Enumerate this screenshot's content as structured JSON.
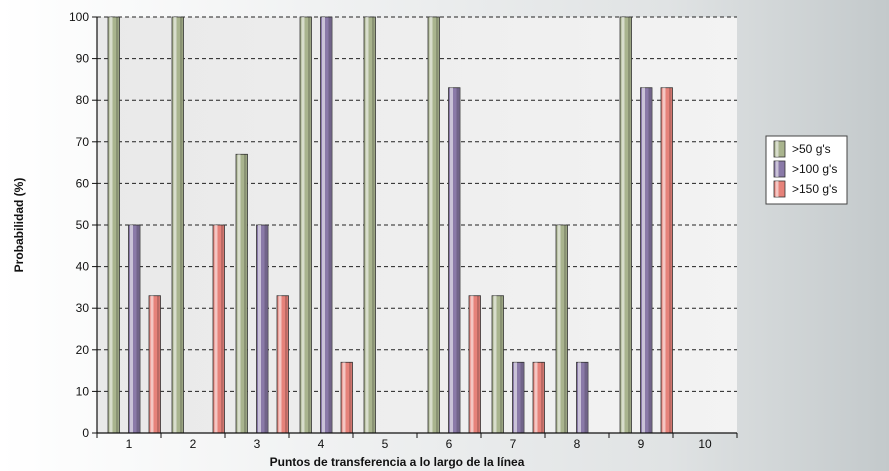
{
  "chart_data": {
    "type": "bar",
    "categories": [
      "1",
      "2",
      "3",
      "4",
      "5",
      "6",
      "7",
      "8",
      "9",
      "10"
    ],
    "series": [
      {
        "name": ">50 g's",
        "values": [
          100,
          100,
          67,
          100,
          100,
          100,
          33,
          50,
          100,
          0
        ]
      },
      {
        "name": ">100 g's",
        "values": [
          50,
          0,
          50,
          100,
          0,
          83,
          17,
          17,
          83,
          0
        ]
      },
      {
        "name": ">150 g's",
        "values": [
          33,
          50,
          33,
          17,
          0,
          33,
          17,
          0,
          83,
          0
        ]
      }
    ],
    "xlabel": "Puntos de transferencia a lo largo de la línea",
    "ylabel": "Probabilidad (%)",
    "ylim": [
      0,
      100
    ],
    "yticks": [
      0,
      10,
      20,
      30,
      40,
      50,
      60,
      70,
      80,
      90,
      100
    ],
    "grid": true,
    "legend_position": "right",
    "colors": [
      "#a9b48e",
      "#8a7aa8",
      "#e6827a"
    ],
    "plot_background": "#e4e4e4",
    "outer_background": "#c9ced0"
  }
}
